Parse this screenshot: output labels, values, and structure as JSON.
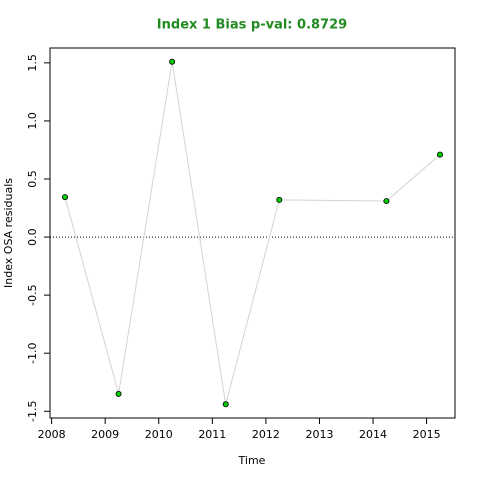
{
  "chart_data": {
    "type": "line",
    "title": "Index 1 Bias p-val: 0.8729",
    "title_color": "#228b22",
    "x_label": "Time",
    "y_label": "Index OSA residuals",
    "x": [
      2008.25,
      2009.25,
      2010.25,
      2011.25,
      2012.25,
      2014.25,
      2015.25
    ],
    "series": [
      {
        "color": "#d3d3d3",
        "marker_color": "#00cc00",
        "values": [
          0.344,
          -1.35,
          1.51,
          -1.44,
          0.32,
          0.31,
          0.71
        ]
      }
    ],
    "xlim": [
      2007.97,
      2015.53
    ],
    "ylim": [
      -1.558,
      1.628
    ],
    "xticks": [
      2008,
      2009,
      2010,
      2011,
      2012,
      2013,
      2014,
      2015
    ],
    "yticks": [
      -1.5,
      -1.0,
      -0.5,
      0.0,
      0.5,
      1.0,
      1.5
    ],
    "ytick_labels": [
      "-1.5",
      "-1.0",
      "-0.5",
      "0.0",
      "0.5",
      "1.0",
      "1.5"
    ],
    "hline": 0
  }
}
